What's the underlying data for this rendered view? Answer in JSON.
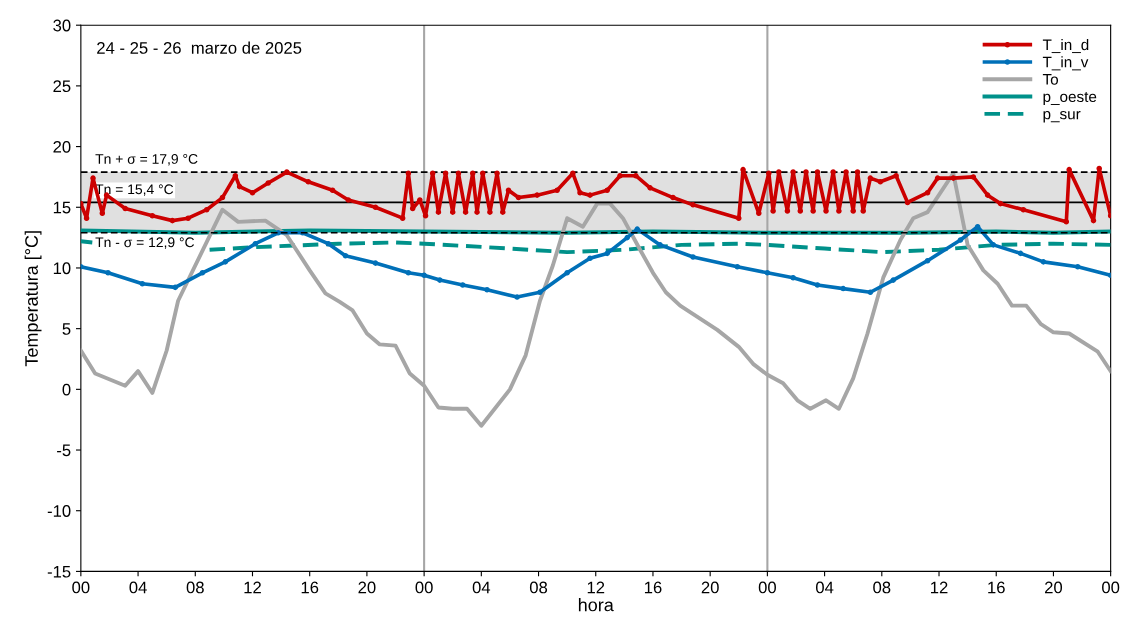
{
  "chart_data": {
    "type": "line",
    "xlabel": "hora",
    "ylabel": "Temperatura [°C]",
    "annotations": [
      "24 - 25 - 26  marzo de 2025"
    ],
    "xlim": [
      0,
      72
    ],
    "ylim": [
      -15,
      30
    ],
    "xticks": [
      {
        "value": 0,
        "label": "00"
      },
      {
        "value": 4,
        "label": "04"
      },
      {
        "value": 8,
        "label": "08"
      },
      {
        "value": 12,
        "label": "12"
      },
      {
        "value": 16,
        "label": "16"
      },
      {
        "value": 20,
        "label": "20"
      },
      {
        "value": 24,
        "label": "00"
      },
      {
        "value": 28,
        "label": "04"
      },
      {
        "value": 32,
        "label": "08"
      },
      {
        "value": 36,
        "label": "12"
      },
      {
        "value": 40,
        "label": "16"
      },
      {
        "value": 44,
        "label": "20"
      },
      {
        "value": 48,
        "label": "00"
      },
      {
        "value": 52,
        "label": "04"
      },
      {
        "value": 56,
        "label": "08"
      },
      {
        "value": 60,
        "label": "12"
      },
      {
        "value": 64,
        "label": "16"
      },
      {
        "value": 68,
        "label": "20"
      },
      {
        "value": 72,
        "label": "00"
      }
    ],
    "yticks": [
      -15,
      -10,
      -5,
      0,
      5,
      10,
      15,
      20,
      25,
      30
    ],
    "grid": false,
    "legend": "top right",
    "bands": [
      {
        "axis": "y",
        "from": 12.9,
        "to": 17.9,
        "color": "#e0e0e0"
      }
    ],
    "ref_lines": [
      {
        "axis": "y",
        "value": 17.9,
        "label": "Tn + σ = 17,9 °C",
        "color": "#000000",
        "line_style": "dashed"
      },
      {
        "axis": "y",
        "value": 15.4,
        "label": "Tn = 15,4 °C",
        "color": "#000000",
        "line_style": "solid"
      },
      {
        "axis": "y",
        "value": 12.9,
        "label": "Tn - σ = 12,9 °C",
        "color": "#000000",
        "line_style": "dashed"
      },
      {
        "axis": "x",
        "value": 24,
        "color": "#a6a6a6",
        "line_style": "solid"
      },
      {
        "axis": "x",
        "value": 48,
        "color": "#a6a6a6",
        "line_style": "solid"
      }
    ],
    "series": [
      {
        "name": "T_in_d",
        "color": "#cc0000",
        "marker": "circle",
        "line_style": "solid",
        "x": [
          0,
          0.4,
          0.85,
          1.5,
          1.8,
          3.1,
          5.0,
          6.4,
          7.5,
          8.8,
          9.9,
          10.8,
          11.1,
          12.0,
          13.1,
          14.4,
          15.9,
          17.6,
          18.7,
          20.6,
          22.5,
          22.9,
          23.2,
          23.7,
          24.1,
          24.6,
          25.0,
          25.5,
          26.0,
          26.4,
          26.9,
          27.4,
          27.7,
          28.1,
          28.6,
          29.1,
          29.5,
          29.9,
          30.6,
          31.9,
          33.3,
          34.4,
          34.9,
          35.6,
          36.8,
          37.7,
          38.8,
          39.8,
          41.4,
          42.8,
          46.0,
          46.3,
          47.4,
          48.1,
          48.4,
          48.8,
          49.4,
          49.8,
          50.3,
          50.7,
          51.2,
          51.5,
          52.1,
          52.6,
          53.0,
          53.5,
          54.0,
          54.3,
          54.7,
          55.2,
          55.9,
          57.0,
          57.8,
          59.2,
          59.9,
          61.0,
          62.4,
          63.4,
          64.3,
          65.9,
          68.9,
          69.1,
          70.8,
          71.2,
          72
        ],
        "values": [
          15.3,
          14.1,
          17.4,
          14.5,
          16.0,
          14.9,
          14.3,
          13.9,
          14.1,
          14.8,
          15.8,
          17.6,
          16.7,
          16.2,
          17.0,
          17.9,
          17.1,
          16.4,
          15.6,
          15.0,
          14.1,
          17.8,
          14.9,
          15.6,
          14.3,
          17.8,
          14.6,
          17.8,
          14.6,
          17.8,
          14.6,
          17.8,
          14.6,
          17.8,
          14.6,
          17.8,
          14.6,
          16.4,
          15.8,
          16.0,
          16.4,
          17.8,
          16.2,
          16.0,
          16.4,
          17.6,
          17.6,
          16.6,
          15.8,
          15.2,
          14.1,
          18.1,
          14.5,
          17.8,
          14.7,
          17.9,
          14.7,
          17.9,
          14.7,
          17.9,
          14.7,
          17.9,
          14.7,
          17.9,
          14.7,
          17.9,
          14.7,
          17.9,
          14.7,
          17.4,
          17.1,
          17.6,
          15.4,
          16.2,
          17.4,
          17.4,
          17.5,
          16.0,
          15.3,
          14.8,
          13.8,
          18.1,
          13.9,
          18.2,
          14.3
        ]
      },
      {
        "name": "T_in_v",
        "color": "#0070b8",
        "marker": "circle",
        "line_style": "solid",
        "x": [
          0,
          1.9,
          4.3,
          6.6,
          8.5,
          10.1,
          12.2,
          13.8,
          15.5,
          17.3,
          18.5,
          20.6,
          22.9,
          24.0,
          25.1,
          26.7,
          28.4,
          30.5,
          32.1,
          34.0,
          35.6,
          36.8,
          38.2,
          38.9,
          40.5,
          42.8,
          45.9,
          48.0,
          49.8,
          51.5,
          53.3,
          55.2,
          56.8,
          59.2,
          61.5,
          62.7,
          63.8,
          65.7,
          67.3,
          69.7,
          72
        ],
        "values": [
          10.1,
          9.6,
          8.7,
          8.4,
          9.6,
          10.5,
          12.0,
          12.9,
          12.9,
          12.0,
          11.0,
          10.4,
          9.6,
          9.4,
          9.0,
          8.6,
          8.2,
          7.6,
          8.0,
          9.6,
          10.8,
          11.2,
          12.5,
          13.2,
          11.9,
          10.9,
          10.1,
          9.6,
          9.2,
          8.6,
          8.3,
          8.0,
          9.0,
          10.6,
          12.3,
          13.4,
          11.9,
          11.2,
          10.5,
          10.1,
          9.4
        ]
      },
      {
        "name": "To",
        "color": "#a6a6a6",
        "marker": "none",
        "line_style": "solid",
        "x": [
          0,
          1,
          3.1,
          4.0,
          5.0,
          6.0,
          6.8,
          9.9,
          11.0,
          12.9,
          14.4,
          16.0,
          17.1,
          18.1,
          19.0,
          20.0,
          20.9,
          22.0,
          23.0,
          24.0,
          25.0,
          26.0,
          27.0,
          28.0,
          30.0,
          31.1,
          32.1,
          33.0,
          34.0,
          35.1,
          36.1,
          37.0,
          37.9,
          39.1,
          40.0,
          40.9,
          41.9,
          44.5,
          46.0,
          47.0,
          48.0,
          49.1,
          50.1,
          51.0,
          52.1,
          53.0,
          54.0,
          55.0,
          56.1,
          57.3,
          58.2,
          59.2,
          61.0,
          62.0,
          63.1,
          64.1,
          65.1,
          66.1,
          67.1,
          68.0,
          69.1,
          71.1,
          72
        ],
        "values": [
          3.2,
          1.3,
          0.3,
          1.5,
          -0.3,
          3.2,
          7.3,
          14.8,
          13.8,
          13.9,
          12.7,
          9.8,
          7.9,
          7.2,
          6.5,
          4.6,
          3.7,
          3.6,
          1.3,
          0.3,
          -1.5,
          -1.6,
          -1.6,
          -3.0,
          0,
          2.8,
          7.3,
          10.2,
          14.1,
          13.4,
          15.3,
          15.3,
          14.1,
          11.5,
          9.6,
          8.0,
          6.9,
          4.9,
          3.5,
          2.1,
          1.2,
          0.5,
          -0.9,
          -1.6,
          -0.9,
          -1.6,
          0.9,
          4.6,
          9.2,
          12.3,
          14.1,
          14.6,
          17.8,
          11.9,
          9.8,
          8.7,
          6.9,
          6.9,
          5.4,
          4.7,
          4.6,
          3.1,
          1.5
        ]
      },
      {
        "name": "p_oeste",
        "color": "#00918a",
        "marker": "none",
        "line_style": "solid",
        "x": [
          0,
          8,
          16,
          24,
          34,
          40,
          48,
          58,
          64,
          68,
          72
        ],
        "values": [
          13.1,
          12.9,
          13.1,
          13.0,
          12.9,
          13.0,
          12.9,
          12.9,
          13.0,
          12.9,
          13.0
        ]
      },
      {
        "name": "p_sur",
        "color": "#00918a",
        "marker": "none",
        "line_style": "dashed",
        "x": [
          0,
          0.8,
          5,
          9,
          12,
          18,
          22,
          24,
          30,
          34,
          38,
          42,
          46,
          48,
          52,
          56,
          60,
          64,
          68,
          72
        ],
        "values": [
          12.2,
          12.1,
          null,
          11.5,
          11.7,
          12.0,
          12.1,
          12.0,
          11.6,
          11.3,
          11.5,
          11.9,
          12.0,
          11.9,
          11.6,
          11.3,
          11.5,
          11.9,
          12.0,
          11.9
        ]
      }
    ]
  }
}
